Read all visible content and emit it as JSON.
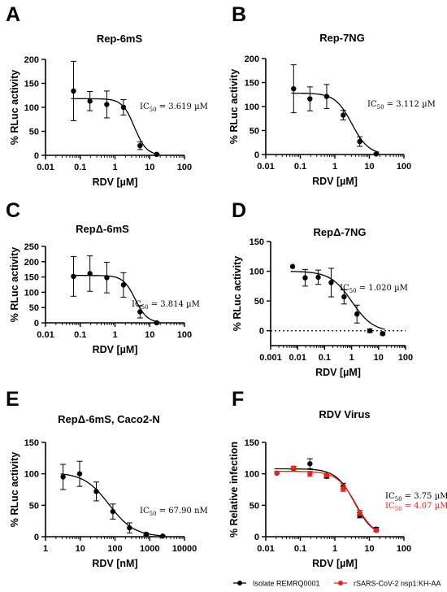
{
  "chart_data": [
    {
      "panel": "A",
      "type": "scatter",
      "title": "Rep-6mS",
      "xlabel": "RDV [µM]",
      "ylabel": "% RLuc activity",
      "xscale": "log",
      "xlim": [
        0.01,
        100
      ],
      "ylim": [
        0,
        200
      ],
      "xticks": [
        0.01,
        0.1,
        1,
        10,
        100
      ],
      "xtick_labels": [
        "0.01",
        "0.1",
        "1",
        "10",
        "100"
      ],
      "yticks": [
        0,
        50,
        100,
        150,
        200
      ],
      "ytick_labels": [
        "0",
        "50",
        "100",
        "150",
        "200"
      ],
      "series": [
        {
          "color": "#000000",
          "x": [
            0.064,
            0.19,
            0.58,
            1.75,
            5.25,
            15.8
          ],
          "y": [
            134,
            113,
            106,
            100,
            20,
            2
          ],
          "err": [
            62,
            20,
            28,
            16,
            8,
            2
          ],
          "fit": {
            "top": 118,
            "bottom": 0,
            "ic50": 3.619,
            "hill": 2.5
          },
          "ic50_text": "IC50 = 3.619 µM"
        }
      ]
    },
    {
      "panel": "B",
      "type": "scatter",
      "title": "Rep-7NG",
      "xlabel": "RDV [µM]",
      "ylabel": "% RLuc activity",
      "xscale": "log",
      "xlim": [
        0.01,
        100
      ],
      "ylim": [
        0,
        200
      ],
      "xticks": [
        0.01,
        0.1,
        1,
        10,
        100
      ],
      "xtick_labels": [
        "0.01",
        "0.1",
        "1",
        "10",
        "100"
      ],
      "yticks": [
        0,
        50,
        100,
        150,
        200
      ],
      "ytick_labels": [
        "0",
        "50",
        "100",
        "150",
        "200"
      ],
      "series": [
        {
          "color": "#000000",
          "x": [
            0.064,
            0.19,
            0.58,
            1.75,
            5.25,
            15.8
          ],
          "y": [
            137,
            116,
            121,
            82,
            27,
            1
          ],
          "err": [
            50,
            25,
            25,
            10,
            10,
            1
          ],
          "fit": {
            "top": 128,
            "bottom": 0,
            "ic50": 3.112,
            "hill": 1.8
          },
          "ic50_text": "IC50 = 3.112 µM"
        }
      ]
    },
    {
      "panel": "C",
      "type": "scatter",
      "title": "RepΔ-6mS",
      "xlabel": "RDV [µM]",
      "ylabel": "% RLuc activity",
      "xscale": "log",
      "xlim": [
        0.01,
        100
      ],
      "ylim": [
        0,
        250
      ],
      "xticks": [
        0.01,
        0.1,
        1,
        10,
        100
      ],
      "xtick_labels": [
        "0.01",
        "0.1",
        "1",
        "10",
        "100"
      ],
      "yticks": [
        0,
        50,
        100,
        150,
        200,
        250
      ],
      "ytick_labels": [
        "0",
        "50",
        "100",
        "150",
        "200",
        "250"
      ],
      "series": [
        {
          "color": "#000000",
          "x": [
            0.064,
            0.19,
            0.58,
            1.75,
            5.25,
            15.8
          ],
          "y": [
            152,
            161,
            148,
            124,
            36,
            0
          ],
          "err": [
            65,
            58,
            50,
            40,
            20,
            2
          ],
          "fit": {
            "top": 155,
            "bottom": 0,
            "ic50": 3.814,
            "hill": 2.5
          },
          "ic50_text": "IC50 = 3.814 µM"
        }
      ]
    },
    {
      "panel": "D",
      "type": "scatter",
      "title": "RepΔ-7NG",
      "xlabel": "RDV [µM]",
      "ylabel": "% RLuc activity",
      "xscale": "log",
      "xlim": [
        0.001,
        100
      ],
      "ylim": [
        -25,
        150
      ],
      "xticks": [
        0.001,
        0.01,
        0.1,
        1,
        10,
        100
      ],
      "xtick_labels": [
        "0.001",
        "0.01",
        "0.1",
        "1",
        "10",
        "100"
      ],
      "yticks": [
        0,
        50,
        100,
        150
      ],
      "ytick_labels": [
        "0",
        "50",
        "100",
        "150"
      ],
      "reference_line": {
        "y": 0,
        "style": "dotted"
      },
      "series": [
        {
          "color": "#000000",
          "x": [
            0.0065,
            0.019,
            0.058,
            0.175,
            0.525,
            1.58,
            4.74,
            14.2
          ],
          "y": [
            108,
            89,
            90,
            81,
            57,
            28,
            0,
            -5
          ],
          "err": [
            0,
            14,
            12,
            24,
            12,
            15,
            3,
            2
          ],
          "fit": {
            "top": 100,
            "bottom": -2,
            "ic50": 1.02,
            "hill": 1.1
          },
          "ic50_text": "IC50 = 1.020 µM"
        }
      ]
    },
    {
      "panel": "E",
      "type": "scatter",
      "title": "RepΔ-6mS, Caco2-N",
      "xlabel": "RDV [nM]",
      "ylabel": "% RLuc activity",
      "xscale": "log",
      "xlim": [
        1,
        10000
      ],
      "ylim": [
        0,
        150
      ],
      "xticks": [
        1,
        10,
        100,
        1000,
        10000
      ],
      "xtick_labels": [
        "1",
        "10",
        "100",
        "1000",
        "10000"
      ],
      "yticks": [
        0,
        50,
        100,
        150
      ],
      "ytick_labels": [
        "0",
        "50",
        "100",
        "150"
      ],
      "series": [
        {
          "color": "#000000",
          "x": [
            3.2,
            9.6,
            29,
            87,
            262,
            787,
            2360
          ],
          "y": [
            95,
            100,
            72,
            40,
            14,
            4,
            1
          ],
          "err": [
            20,
            20,
            15,
            12,
            8,
            2,
            1
          ],
          "fit": {
            "top": 102,
            "bottom": 0,
            "ic50": 67.9,
            "hill": 1.2
          },
          "ic50_text": "IC50 = 67.90 nM"
        }
      ]
    },
    {
      "panel": "F",
      "type": "scatter",
      "title": "RDV Virus",
      "xlabel": "RDV [µM]",
      "ylabel": "% Relative infection",
      "xscale": "log",
      "xlim": [
        0.01,
        100
      ],
      "ylim": [
        0,
        150
      ],
      "xticks": [
        0.01,
        0.1,
        1,
        10,
        100
      ],
      "xtick_labels": [
        "0.01",
        "0.1",
        "1",
        "10",
        "100"
      ],
      "yticks": [
        0,
        50,
        100,
        150
      ],
      "ytick_labels": [
        "0",
        "50",
        "100",
        "150"
      ],
      "legend": "bottom",
      "series": [
        {
          "name": "Isolate REMRQ0001",
          "color": "#000000",
          "x": [
            0.021,
            0.064,
            0.19,
            0.58,
            1.75,
            5.25,
            15.8
          ],
          "y": [
            101,
            108,
            116,
            96,
            80,
            34,
            12
          ],
          "err": [
            0,
            4,
            8,
            3,
            5,
            4,
            3
          ],
          "fit": {
            "top": 108,
            "bottom": 0,
            "ic50": 3.75,
            "hill": 1.6
          },
          "ic50_text": "IC50 = 3.75 µM"
        },
        {
          "name": "rSARS-CoV-2 nsp1:KH-AA",
          "color": "#e8231d",
          "x": [
            0.021,
            0.064,
            0.19,
            0.58,
            1.75,
            5.25,
            15.8
          ],
          "y": [
            101,
            109,
            100,
            98,
            76,
            38,
            10
          ],
          "err": [
            0,
            3,
            4,
            3,
            4,
            4,
            2
          ],
          "fit": {
            "top": 104,
            "bottom": 0,
            "ic50": 4.07,
            "hill": 1.6
          },
          "ic50_text": "IC50 = 4.07 µM"
        }
      ]
    }
  ]
}
